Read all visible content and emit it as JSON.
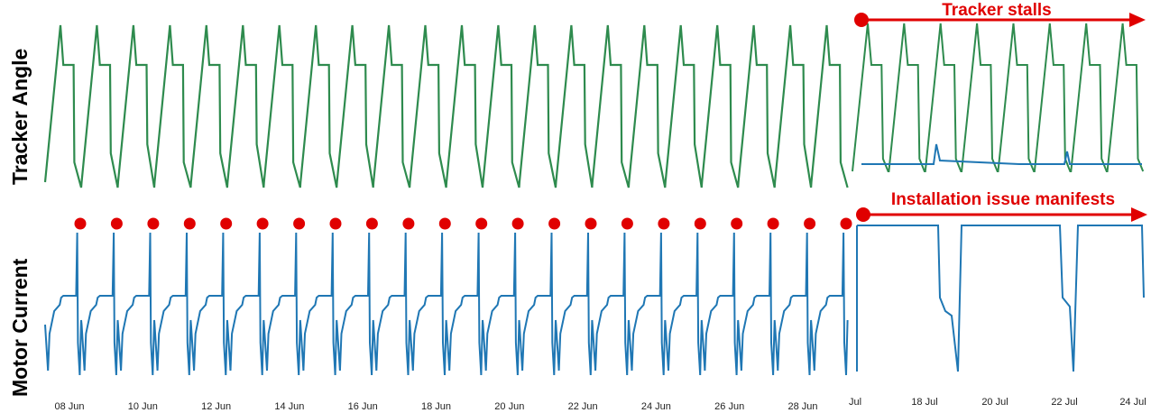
{
  "chart_data": [
    {
      "type": "line",
      "panel": "left-top",
      "ylabel": "Tracker Angle",
      "x_range": [
        "07 Jun",
        "29 Jun"
      ],
      "series": [
        {
          "color": "#2e8b4e",
          "pattern": "daily sawtooth",
          "days": 22,
          "levels": {
            "min": -1.0,
            "max": 1.0,
            "plateau": 0.7
          }
        }
      ]
    },
    {
      "type": "line",
      "panel": "left-bottom",
      "ylabel": "Motor Current",
      "x": [
        "08 Jun",
        "10 Jun",
        "12 Jun",
        "14 Jun",
        "16 Jun",
        "18 Jun",
        "20 Jun",
        "22 Jun",
        "24 Jun",
        "26 Jun",
        "28 Jun"
      ],
      "series": [
        {
          "color": "#1f77b4",
          "pattern": "daily spikes",
          "days": 22,
          "levels": {
            "base": 0.3,
            "plateau": 0.55,
            "spike": 0.95,
            "min": 0.05
          }
        }
      ],
      "markers": {
        "color": "#e00000",
        "count": 22
      }
    },
    {
      "type": "line",
      "panel": "right-top",
      "x_range": [
        "16 Jul",
        "24 Jul"
      ],
      "series": [
        {
          "color": "#2e8b4e",
          "pattern": "daily sawtooth",
          "days": 8
        },
        {
          "color": "#1f77b4",
          "pattern": "flat low with steps"
        }
      ],
      "annotation": "Tracker stalls"
    },
    {
      "type": "line",
      "panel": "right-bottom",
      "x": [
        "Jul",
        "18 Jul",
        "20 Jul",
        "22 Jul",
        "24 Jul"
      ],
      "series": [
        {
          "color": "#1f77b4",
          "pattern": "saturated high with dips"
        }
      ],
      "annotation": "Installation issue manifests"
    }
  ]
}
